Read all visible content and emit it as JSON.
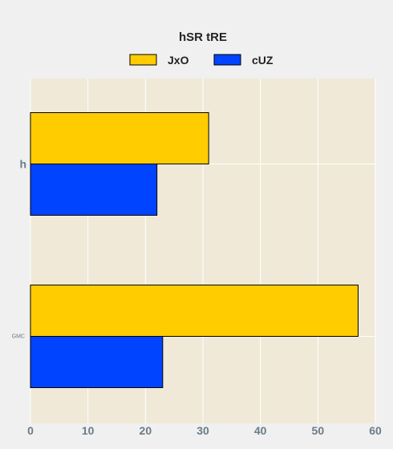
{
  "chart_data": {
    "type": "bar",
    "orientation": "horizontal",
    "title": "hSR tRE",
    "categories": [
      "h",
      "GMC"
    ],
    "series": [
      {
        "name": "JxO",
        "values": [
          31,
          57
        ],
        "color": "#ffcc00"
      },
      {
        "name": "cUZ",
        "values": [
          22,
          23
        ],
        "color": "#0044ff"
      }
    ],
    "xlim": [
      0,
      60
    ],
    "xticks": [
      0,
      10,
      20,
      30,
      40,
      50,
      60
    ],
    "xlabel": "",
    "ylabel": "",
    "grid": true,
    "legend_position": "top-center",
    "plot_background": "#f0e9d7",
    "page_background": "#f0f0f0",
    "bar_edge_color": "#000000"
  }
}
